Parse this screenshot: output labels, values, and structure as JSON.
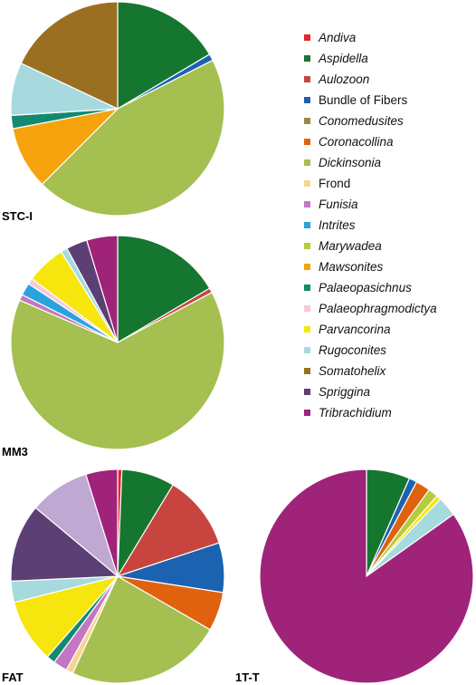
{
  "chart_data": {
    "type": "pie",
    "categories": [
      {
        "name": "Andiva",
        "italic": true,
        "color": "#e5262b"
      },
      {
        "name": "Aspidella",
        "italic": true,
        "color": "#15762f"
      },
      {
        "name": "Aulozoon",
        "italic": true,
        "color": "#c8443f"
      },
      {
        "name": "Bundle of Fibers",
        "italic": false,
        "color": "#1b62b0"
      },
      {
        "name": "Conomedusites",
        "italic": true,
        "color": "#9b8848"
      },
      {
        "name": "Coronacollina",
        "italic": true,
        "color": "#e0620f"
      },
      {
        "name": "Dickinsonia",
        "italic": true,
        "color": "#a5bf50"
      },
      {
        "name": "Frond",
        "italic": false,
        "color": "#f7d490"
      },
      {
        "name": "Funisia",
        "italic": true,
        "color": "#c377c2"
      },
      {
        "name": "Intrites",
        "italic": true,
        "color": "#2aa3dc"
      },
      {
        "name": "Marywadea",
        "italic": true,
        "color": "#b5cd3c"
      },
      {
        "name": "Mawsonites",
        "italic": true,
        "color": "#f6a30d"
      },
      {
        "name": "Palaeopasichnus",
        "italic": true,
        "color": "#138a70"
      },
      {
        "name": "Palaeophragmodictya",
        "italic": true,
        "color": "#f7c8de"
      },
      {
        "name": "Parvancorina",
        "italic": true,
        "color": "#f7e60e"
      },
      {
        "name": "Rugoconites",
        "italic": true,
        "color": "#a6dadf"
      },
      {
        "name": "Somatohelix",
        "italic": true,
        "color": "#9b6f22"
      },
      {
        "name": "Spriggina",
        "italic": true,
        "color": "#5c3f74"
      },
      {
        "name": "Tribrachidium",
        "italic": true,
        "color": "#a0237a"
      }
    ],
    "charts": [
      {
        "label": "STC-I",
        "values": {
          "Aspidella": 16.5,
          "Bundle of Fibers": 1.0,
          "Dickinsonia": 45.0,
          "Mawsonites": 9.5,
          "Palaeopasichnus": 2.0,
          "Rugoconites": 8.0,
          "Somatohelix": 18.0
        }
      },
      {
        "label": "MM3",
        "values": {
          "Aspidella": 16.6,
          "Aulozoon": 0.7,
          "Dickinsonia": 64.5,
          "Funisia": 0.9,
          "Intrites": 1.9,
          "Palaeophragmodictya": 0.9,
          "Parvancorina": 6.0,
          "Rugoconites": 1.0,
          "Spriggina": 3.2,
          "Tribrachidium": 4.7
        }
      },
      {
        "label": "FAT",
        "values": {
          "Andiva": 0.6,
          "Aspidella": 7.5,
          "Aulozoon": 10.5,
          "Bundle of Fibers": 7.0,
          "Coronacollina": 5.5,
          "Dickinsonia": 22.0,
          "Frond": 1.0,
          "Funisia": 2.0,
          "Palaeopasichnus": 1.2,
          "Parvancorina": 9.0,
          "Rugoconites": 3.0,
          "Spriggina": 11.0,
          "Tribrachidium": 4.5,
          "Conomedusites_lilac": 0
        }
      },
      {
        "label": "1T-T",
        "values": {
          "Aspidella": 6.6,
          "Bundle of Fibers": 1.2,
          "Coronacollina": 2.2,
          "Marywadea": 1.5,
          "Parvancorina": 0.7,
          "Rugoconites": 3.0,
          "Tribrachidium": 85.0
        }
      }
    ],
    "extra_slices": {
      "FAT": [
        {
          "name": "lilac",
          "color": "#bfa8d1",
          "value": 8.5,
          "after": "Spriggina"
        }
      ]
    }
  }
}
